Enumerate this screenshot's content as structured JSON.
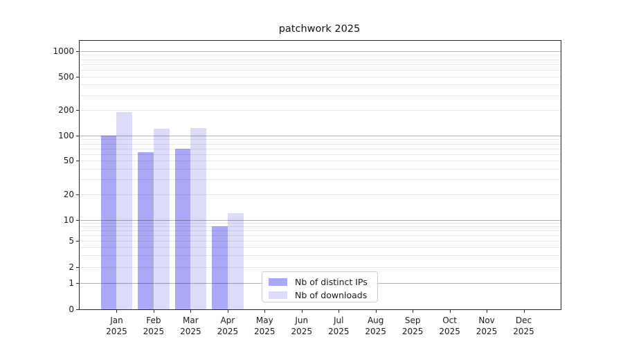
{
  "chart_data": {
    "type": "bar",
    "title": "patchwork 2025",
    "xlabel": "",
    "ylabel": "",
    "categories": [
      "Jan 2025",
      "Feb 2025",
      "Mar 2025",
      "Apr 2025",
      "May 2025",
      "Jun 2025",
      "Jul 2025",
      "Aug 2025",
      "Sep 2025",
      "Oct 2025",
      "Nov 2025",
      "Dec 2025"
    ],
    "series": [
      {
        "name": "Nb of distinct IPs",
        "color": "#a9a9f5",
        "values": [
          100,
          63,
          70,
          8,
          0,
          0,
          0,
          0,
          0,
          0,
          0,
          0
        ]
      },
      {
        "name": "Nb of downloads",
        "color": "#dcdcfa",
        "values": [
          190,
          120,
          123,
          12,
          0,
          0,
          0,
          0,
          0,
          0,
          0,
          0
        ]
      }
    ],
    "yscale": "symlog",
    "ylim": [
      0,
      1300
    ],
    "ytick_values": [
      0,
      1,
      2,
      5,
      10,
      20,
      50,
      100,
      200,
      500,
      1000
    ],
    "ytick_labels": [
      "0",
      "1",
      "2",
      "5",
      "10",
      "20",
      "50",
      "100",
      "200",
      "500",
      "1000"
    ],
    "grid": "both",
    "legend_position": "lower center"
  },
  "legend": {
    "items": [
      {
        "label": "Nb of distinct IPs"
      },
      {
        "label": "Nb of downloads"
      }
    ]
  },
  "colors": {
    "grid_major": "rgba(0,0,0,0.30)",
    "grid_minor": "rgba(0,0,0,0.09)",
    "spine": "#222222",
    "text": "#1a1a1a",
    "legend_border": "#cccccc"
  }
}
